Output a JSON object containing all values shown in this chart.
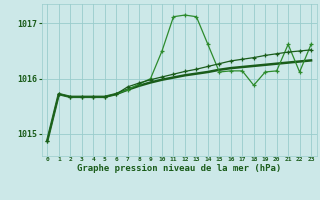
{
  "bg_color": "#cce8e8",
  "grid_color": "#99cccc",
  "line_dark": "#1a5c1a",
  "line_mid": "#2d8b2d",
  "x_labels": [
    "0",
    "1",
    "2",
    "3",
    "4",
    "5",
    "6",
    "7",
    "8",
    "9",
    "10",
    "11",
    "12",
    "13",
    "14",
    "15",
    "16",
    "17",
    "18",
    "19",
    "20",
    "21",
    "22",
    "23"
  ],
  "yticks": [
    1015,
    1016,
    1017
  ],
  "ylim": [
    1014.6,
    1017.35
  ],
  "xlim": [
    -0.5,
    23.5
  ],
  "xlabel": "Graphe pression niveau de la mer (hPa)",
  "s1": [
    1014.88,
    1015.72,
    1015.67,
    1015.67,
    1015.67,
    1015.67,
    1015.72,
    1015.8,
    1015.9,
    1016.0,
    1016.5,
    1017.12,
    1017.15,
    1017.12,
    1016.62,
    1016.12,
    1016.14,
    1016.14,
    1015.88,
    1016.12,
    1016.14,
    1016.62,
    1016.12,
    1016.62
  ],
  "s2": [
    1014.88,
    1015.72,
    1015.67,
    1015.67,
    1015.67,
    1015.67,
    1015.72,
    1015.85,
    1015.92,
    1015.98,
    1016.03,
    1016.08,
    1016.13,
    1016.17,
    1016.22,
    1016.27,
    1016.32,
    1016.35,
    1016.38,
    1016.42,
    1016.45,
    1016.48,
    1016.5,
    1016.52
  ],
  "s3": [
    1014.88,
    1015.72,
    1015.67,
    1015.67,
    1015.67,
    1015.67,
    1015.72,
    1015.8,
    1015.87,
    1015.93,
    1015.98,
    1016.02,
    1016.06,
    1016.09,
    1016.12,
    1016.16,
    1016.19,
    1016.21,
    1016.23,
    1016.25,
    1016.27,
    1016.29,
    1016.31,
    1016.33
  ]
}
